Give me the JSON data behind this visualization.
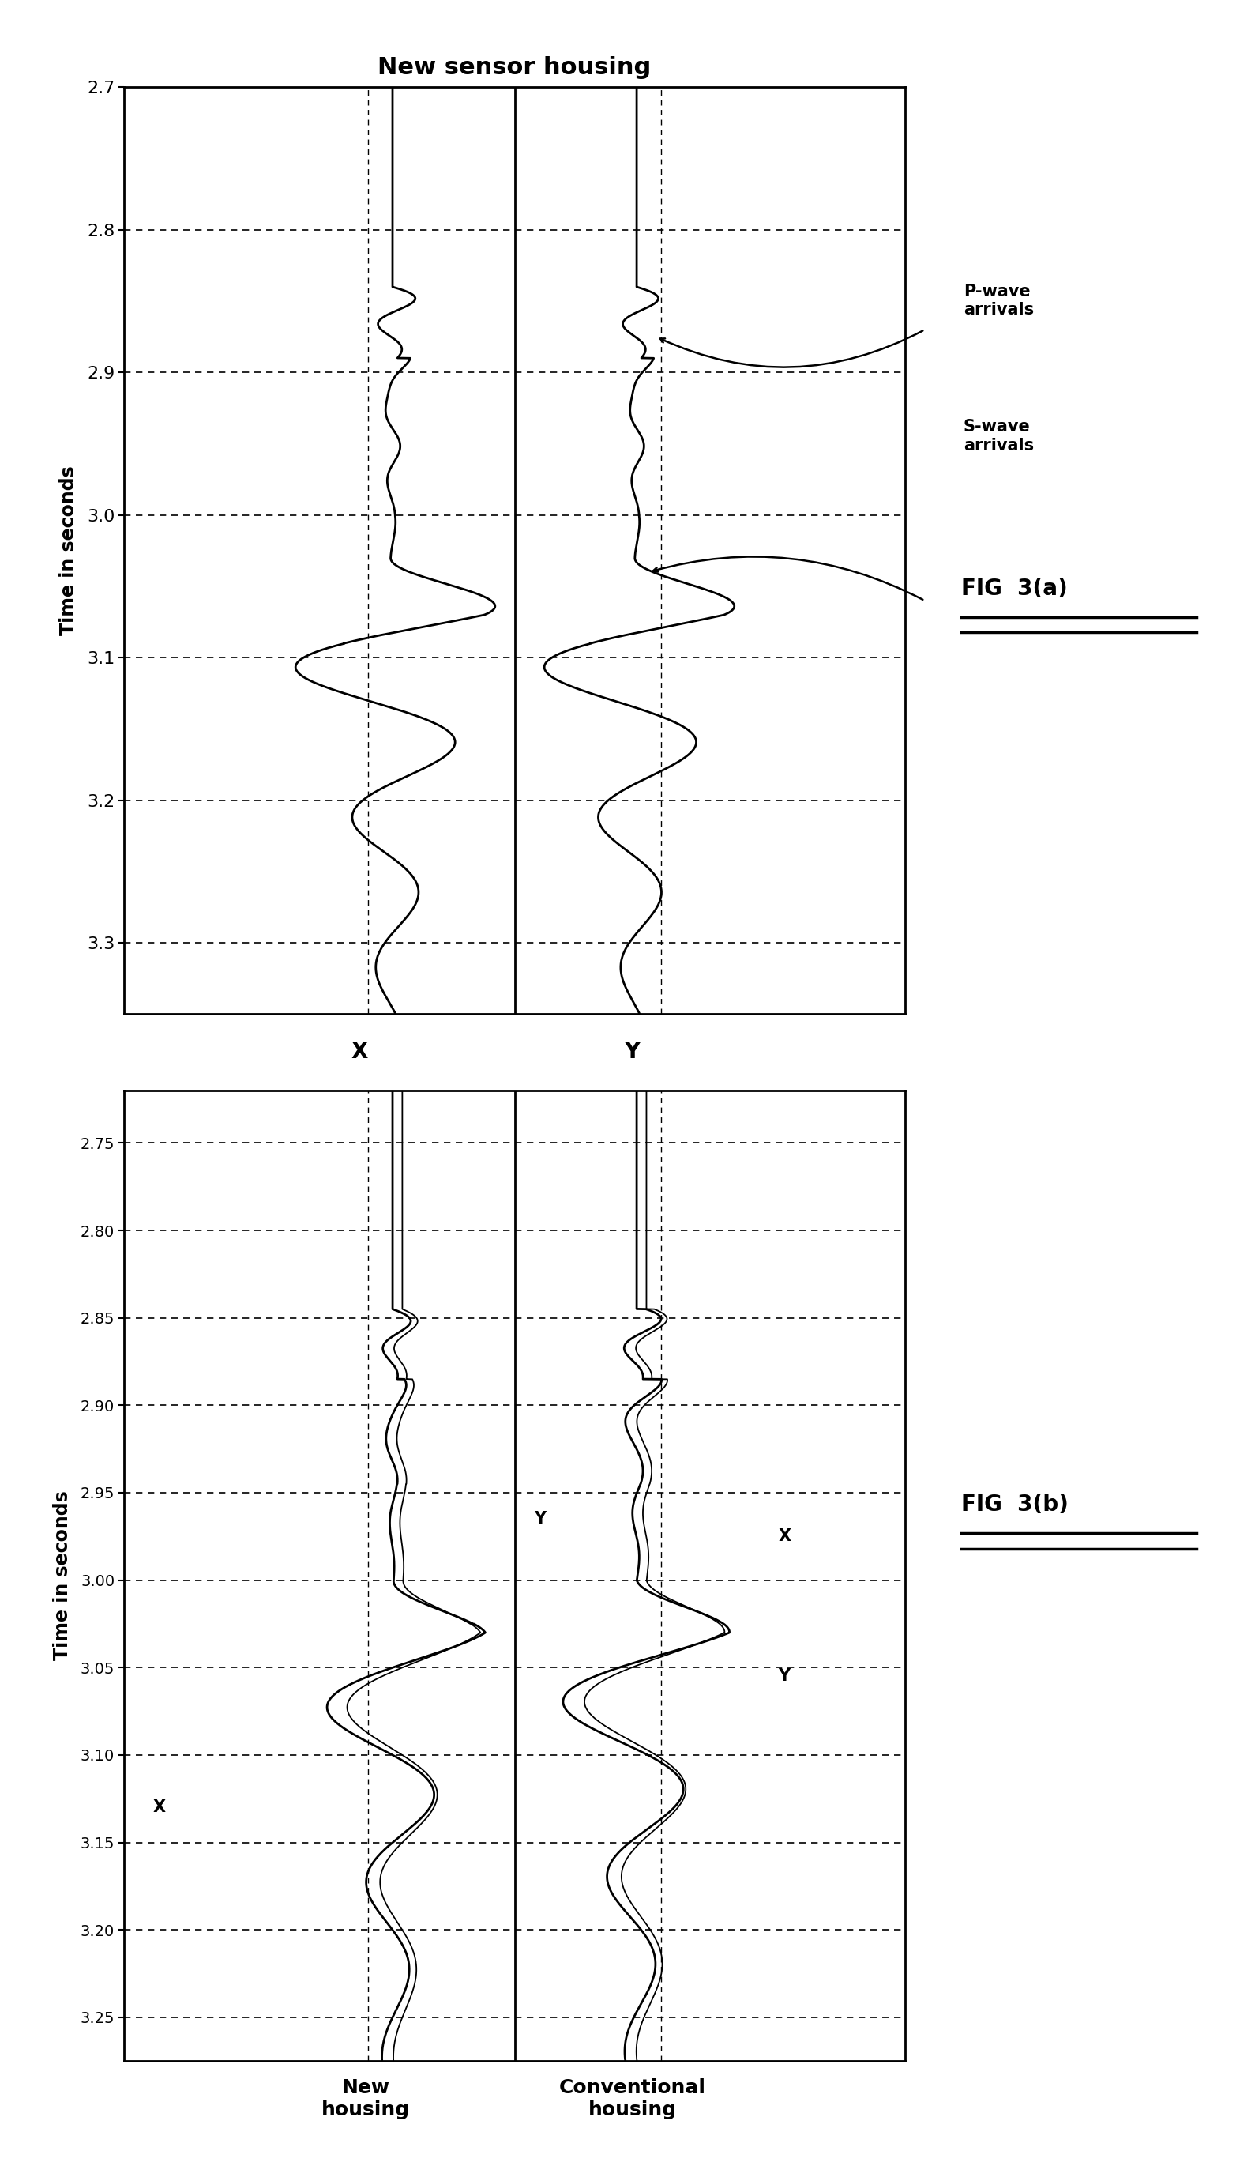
{
  "fig3a_title": "New sensor housing",
  "fig3a_ylabel": "Time in seconds",
  "fig3a_ylim": [
    2.7,
    3.35
  ],
  "fig3a_yticks": [
    2.7,
    2.8,
    2.9,
    3.0,
    3.1,
    3.2,
    3.3
  ],
  "fig3a_xlabel_x": "X",
  "fig3a_xlabel_y": "Y",
  "fig3a_label": "FIG  3(a)",
  "fig3b_ylabel": "Time in seconds",
  "fig3b_ylim": [
    2.72,
    3.275
  ],
  "fig3b_yticks": [
    2.75,
    2.8,
    2.85,
    2.9,
    2.95,
    3.0,
    3.05,
    3.1,
    3.15,
    3.2,
    3.25
  ],
  "fig3b_xlabel_new": "New\nhousing",
  "fig3b_xlabel_conv": "Conventional\nhousing",
  "fig3b_label": "FIG  3(b)",
  "p_wave_label": "P-wave\narrivals",
  "s_wave_label": "S-wave\narrivals",
  "background_color": "#ffffff"
}
